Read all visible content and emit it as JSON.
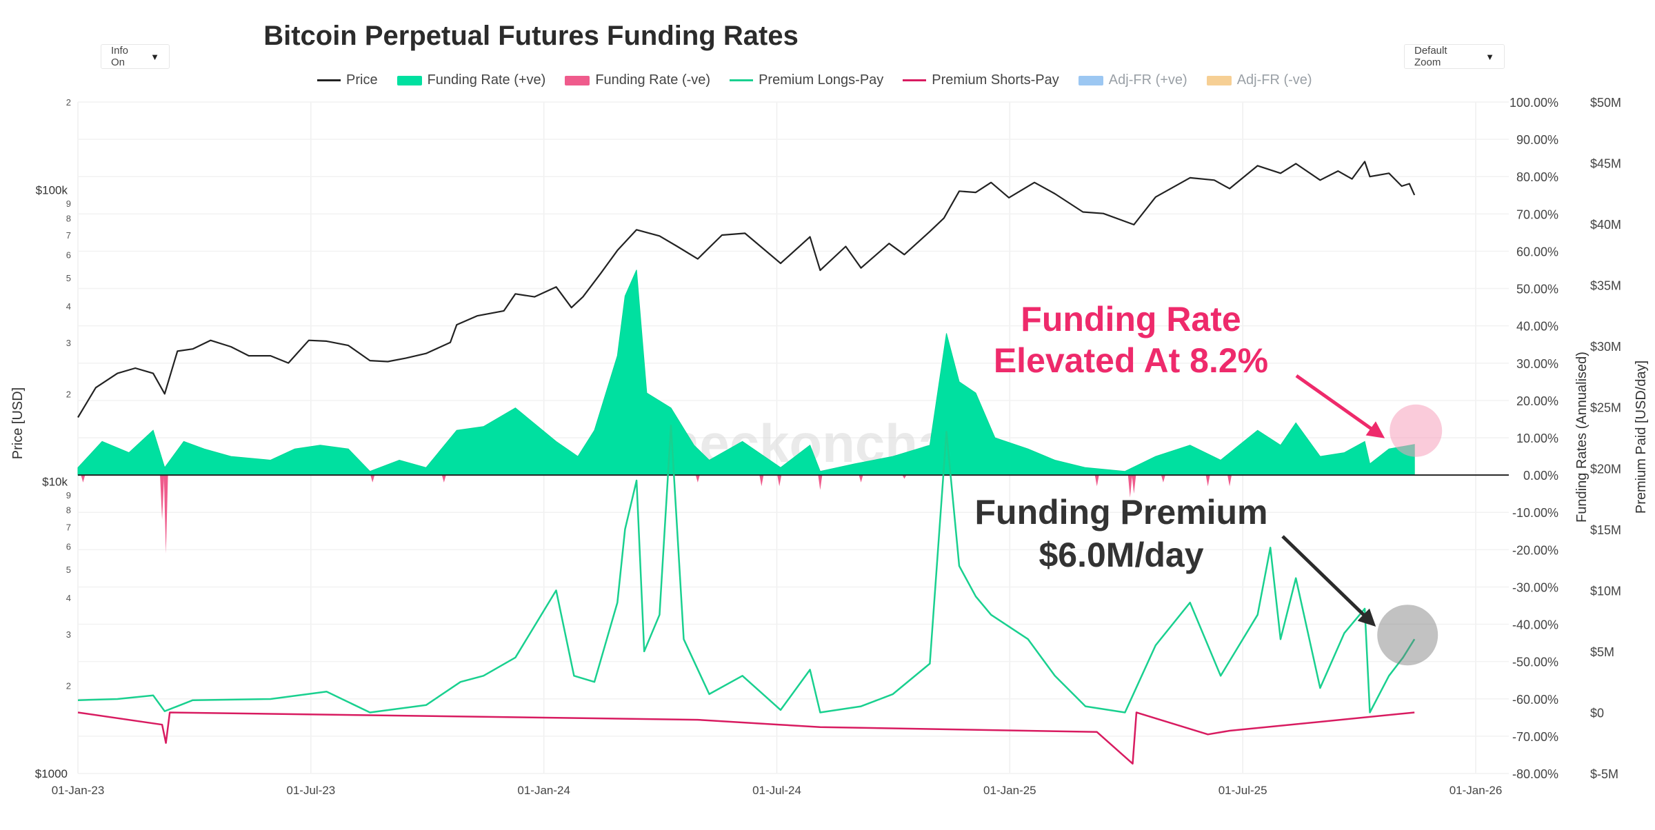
{
  "chart_data": {
    "title": "Bitcoin Perpetual Futures Funding Rates",
    "type": "line",
    "x_ticks": [
      "01-Jan-23",
      "01-Jul-23",
      "01-Jan-24",
      "01-Jul-24",
      "01-Jan-25",
      "01-Jul-25",
      "01-Jan-26"
    ],
    "x_range": [
      "2023-01-01",
      "2026-01-31"
    ],
    "left_axis": {
      "label": "Price [USD]",
      "scale": "log",
      "range": [
        1000,
        200000
      ],
      "major_ticks": [
        {
          "value": 100000,
          "label": "$100k"
        },
        {
          "value": 10000,
          "label": "$10k"
        },
        {
          "value": 1000,
          "label": "$1000"
        }
      ],
      "minor_ticks": [
        {
          "value": 200000,
          "label": "2"
        },
        {
          "value": 90000,
          "label": "9"
        },
        {
          "value": 80000,
          "label": "8"
        },
        {
          "value": 70000,
          "label": "7"
        },
        {
          "value": 60000,
          "label": "6"
        },
        {
          "value": 50000,
          "label": "5"
        },
        {
          "value": 40000,
          "label": "4"
        },
        {
          "value": 30000,
          "label": "3"
        },
        {
          "value": 20000,
          "label": "2"
        },
        {
          "value": 9000,
          "label": "9"
        },
        {
          "value": 8000,
          "label": "8"
        },
        {
          "value": 7000,
          "label": "7"
        },
        {
          "value": 6000,
          "label": "6"
        },
        {
          "value": 5000,
          "label": "5"
        },
        {
          "value": 4000,
          "label": "4"
        },
        {
          "value": 3000,
          "label": "3"
        },
        {
          "value": 2000,
          "label": "2"
        }
      ]
    },
    "right_axis_1": {
      "label": "Funding Rates (Annualised)",
      "range": [
        -80,
        100
      ],
      "ticks": [
        "100.00%",
        "90.00%",
        "80.00%",
        "70.00%",
        "60.00%",
        "50.00%",
        "40.00%",
        "30.00%",
        "20.00%",
        "10.00%",
        "0.00%",
        "-10.00%",
        "-20.00%",
        "-30.00%",
        "-40.00%",
        "-50.00%",
        "-60.00%",
        "-70.00%",
        "-80.00%"
      ]
    },
    "right_axis_2": {
      "label": "Premium Paid [USD/day]",
      "range": [
        -5,
        50
      ],
      "ticks": [
        "$50M",
        "$45M",
        "$40M",
        "$35M",
        "$30M",
        "$25M",
        "$20M",
        "$15M",
        "$10M",
        "$5M",
        "$0",
        "$-5M"
      ]
    },
    "legend": [
      {
        "name": "Price",
        "color": "#222222",
        "kind": "line"
      },
      {
        "name": "Funding Rate (+ve)",
        "color": "#00e0a0",
        "kind": "box"
      },
      {
        "name": "Funding Rate (-ve)",
        "color": "#ef5b8c",
        "kind": "box"
      },
      {
        "name": "Premium Longs-Pay",
        "color": "#19d08f",
        "kind": "line"
      },
      {
        "name": "Premium Shorts-Pay",
        "color": "#d81b60",
        "kind": "line"
      },
      {
        "name": "Adj-FR (+ve)",
        "color": "#9cc7f2",
        "kind": "box",
        "muted": true
      },
      {
        "name": "Adj-FR (-ve)",
        "color": "#f6cf94",
        "kind": "box",
        "muted": true
      }
    ],
    "series": [
      {
        "name": "Price",
        "axis": "price",
        "points": [
          [
            "2023-01-01",
            16600
          ],
          [
            "2023-01-15",
            21000
          ],
          [
            "2023-02-01",
            23500
          ],
          [
            "2023-02-15",
            24500
          ],
          [
            "2023-03-01",
            23500
          ],
          [
            "2023-03-10",
            20000
          ],
          [
            "2023-03-20",
            28000
          ],
          [
            "2023-04-01",
            28500
          ],
          [
            "2023-04-15",
            30500
          ],
          [
            "2023-05-01",
            29000
          ],
          [
            "2023-05-15",
            27000
          ],
          [
            "2023-06-01",
            27000
          ],
          [
            "2023-06-15",
            25500
          ],
          [
            "2023-07-01",
            30500
          ],
          [
            "2023-07-15",
            30300
          ],
          [
            "2023-08-01",
            29300
          ],
          [
            "2023-08-18",
            26000
          ],
          [
            "2023-09-01",
            25800
          ],
          [
            "2023-09-15",
            26500
          ],
          [
            "2023-10-01",
            27500
          ],
          [
            "2023-10-20",
            30000
          ],
          [
            "2023-10-25",
            34500
          ],
          [
            "2023-11-10",
            37000
          ],
          [
            "2023-12-01",
            38500
          ],
          [
            "2023-12-10",
            44000
          ],
          [
            "2023-12-25",
            43000
          ],
          [
            "2024-01-11",
            46500
          ],
          [
            "2024-01-23",
            39500
          ],
          [
            "2024-02-01",
            43000
          ],
          [
            "2024-02-15",
            51800
          ],
          [
            "2024-02-28",
            62000
          ],
          [
            "2024-03-14",
            73000
          ],
          [
            "2024-04-01",
            69500
          ],
          [
            "2024-04-15",
            64000
          ],
          [
            "2024-05-01",
            58000
          ],
          [
            "2024-05-20",
            70000
          ],
          [
            "2024-06-07",
            71000
          ],
          [
            "2024-07-05",
            56000
          ],
          [
            "2024-07-28",
            69000
          ],
          [
            "2024-08-05",
            53000
          ],
          [
            "2024-08-25",
            64000
          ],
          [
            "2024-09-06",
            54000
          ],
          [
            "2024-09-28",
            65500
          ],
          [
            "2024-10-10",
            60000
          ],
          [
            "2024-10-30",
            72000
          ],
          [
            "2024-11-10",
            80000
          ],
          [
            "2024-11-22",
            99000
          ],
          [
            "2024-12-05",
            98000
          ],
          [
            "2024-12-17",
            106000
          ],
          [
            "2024-12-31",
            94000
          ],
          [
            "2025-01-20",
            106000
          ],
          [
            "2025-02-05",
            97000
          ],
          [
            "2025-02-27",
            84000
          ],
          [
            "2025-03-15",
            83000
          ],
          [
            "2025-04-08",
            76000
          ],
          [
            "2025-04-25",
            94500
          ],
          [
            "2025-05-22",
            110000
          ],
          [
            "2025-06-10",
            108000
          ],
          [
            "2025-06-22",
            101000
          ],
          [
            "2025-07-14",
            121000
          ],
          [
            "2025-08-01",
            114000
          ],
          [
            "2025-08-13",
            123000
          ],
          [
            "2025-09-01",
            108000
          ],
          [
            "2025-09-15",
            116000
          ],
          [
            "2025-09-26",
            109000
          ],
          [
            "2025-10-06",
            125000
          ],
          [
            "2025-10-10",
            111000
          ],
          [
            "2025-10-25",
            114000
          ],
          [
            "2025-11-04",
            103000
          ],
          [
            "2025-11-10",
            105000
          ],
          [
            "2025-11-14",
            96000
          ]
        ]
      },
      {
        "name": "Funding Rate (+ve)",
        "axis": "funding_rate_pct",
        "points": [
          [
            "2023-01-01",
            2
          ],
          [
            "2023-01-20",
            9
          ],
          [
            "2023-02-10",
            6
          ],
          [
            "2023-03-01",
            12
          ],
          [
            "2023-03-10",
            2
          ],
          [
            "2023-03-25",
            9
          ],
          [
            "2023-04-10",
            7
          ],
          [
            "2023-05-01",
            5
          ],
          [
            "2023-06-01",
            4
          ],
          [
            "2023-06-20",
            7
          ],
          [
            "2023-07-10",
            8
          ],
          [
            "2023-08-01",
            7
          ],
          [
            "2023-08-18",
            1
          ],
          [
            "2023-09-10",
            4
          ],
          [
            "2023-10-01",
            2
          ],
          [
            "2023-10-25",
            12
          ],
          [
            "2023-11-15",
            13
          ],
          [
            "2023-12-10",
            18
          ],
          [
            "2024-01-11",
            9
          ],
          [
            "2024-01-28",
            5
          ],
          [
            "2024-02-10",
            12
          ],
          [
            "2024-02-28",
            32
          ],
          [
            "2024-03-05",
            48
          ],
          [
            "2024-03-14",
            55
          ],
          [
            "2024-03-22",
            22
          ],
          [
            "2024-04-10",
            18
          ],
          [
            "2024-04-28",
            8
          ],
          [
            "2024-05-10",
            4
          ],
          [
            "2024-06-05",
            9
          ],
          [
            "2024-07-05",
            2
          ],
          [
            "2024-07-28",
            8
          ],
          [
            "2024-08-05",
            1
          ],
          [
            "2024-09-01",
            3
          ],
          [
            "2024-10-01",
            5
          ],
          [
            "2024-10-30",
            8
          ],
          [
            "2024-11-12",
            38
          ],
          [
            "2024-11-22",
            25
          ],
          [
            "2024-12-05",
            22
          ],
          [
            "2024-12-20",
            10
          ],
          [
            "2025-01-15",
            7
          ],
          [
            "2025-02-05",
            4
          ],
          [
            "2025-03-01",
            2
          ],
          [
            "2025-04-01",
            1
          ],
          [
            "2025-04-25",
            5
          ],
          [
            "2025-05-22",
            8
          ],
          [
            "2025-06-15",
            4
          ],
          [
            "2025-07-14",
            12
          ],
          [
            "2025-08-01",
            8
          ],
          [
            "2025-08-13",
            14
          ],
          [
            "2025-09-01",
            5
          ],
          [
            "2025-09-20",
            6
          ],
          [
            "2025-10-06",
            9
          ],
          [
            "2025-10-10",
            3
          ],
          [
            "2025-10-25",
            7
          ],
          [
            "2025-11-14",
            8.2
          ]
        ]
      },
      {
        "name": "Funding Rate (-ve)",
        "axis": "funding_rate_pct",
        "points": [
          [
            "2023-01-05",
            -2
          ],
          [
            "2023-03-08",
            -12
          ],
          [
            "2023-03-11",
            -21
          ],
          [
            "2023-08-20",
            -2
          ],
          [
            "2023-10-15",
            -2
          ],
          [
            "2024-05-01",
            -2
          ],
          [
            "2024-06-20",
            -3
          ],
          [
            "2024-07-04",
            -3
          ],
          [
            "2024-08-05",
            -4
          ],
          [
            "2024-09-06",
            -2
          ],
          [
            "2024-10-10",
            -1
          ],
          [
            "2025-03-10",
            -3
          ],
          [
            "2025-04-05",
            -6
          ],
          [
            "2025-04-08",
            -5
          ],
          [
            "2025-05-01",
            -2
          ],
          [
            "2025-06-05",
            -3
          ],
          [
            "2025-06-22",
            -3
          ]
        ]
      },
      {
        "name": "Premium Longs-Pay",
        "axis": "premium_usd_m",
        "points": [
          [
            "2023-01-01",
            1.0
          ],
          [
            "2023-02-01",
            1.1
          ],
          [
            "2023-03-01",
            1.4
          ],
          [
            "2023-03-10",
            0.1
          ],
          [
            "2023-04-01",
            1.0
          ],
          [
            "2023-06-01",
            1.1
          ],
          [
            "2023-07-15",
            1.7
          ],
          [
            "2023-08-18",
            0.0
          ],
          [
            "2023-10-01",
            0.6
          ],
          [
            "2023-10-28",
            2.5
          ],
          [
            "2023-11-15",
            3.0
          ],
          [
            "2023-12-10",
            4.5
          ],
          [
            "2024-01-11",
            10.0
          ],
          [
            "2024-01-25",
            3.0
          ],
          [
            "2024-02-10",
            2.5
          ],
          [
            "2024-02-28",
            9.0
          ],
          [
            "2024-03-05",
            15.0
          ],
          [
            "2024-03-14",
            19.0
          ],
          [
            "2024-03-20",
            5.0
          ],
          [
            "2024-04-01",
            8.0
          ],
          [
            "2024-04-10",
            23.5
          ],
          [
            "2024-04-20",
            6.0
          ],
          [
            "2024-05-10",
            1.5
          ],
          [
            "2024-06-05",
            3.0
          ],
          [
            "2024-07-05",
            0.2
          ],
          [
            "2024-07-28",
            3.5
          ],
          [
            "2024-08-05",
            0.0
          ],
          [
            "2024-09-06",
            0.5
          ],
          [
            "2024-10-01",
            1.5
          ],
          [
            "2024-10-30",
            4.0
          ],
          [
            "2024-11-12",
            23.0
          ],
          [
            "2024-11-22",
            12.0
          ],
          [
            "2024-12-05",
            9.5
          ],
          [
            "2024-12-17",
            8.0
          ],
          [
            "2025-01-15",
            6.0
          ],
          [
            "2025-02-05",
            3.0
          ],
          [
            "2025-03-01",
            0.5
          ],
          [
            "2025-04-01",
            0.0
          ],
          [
            "2025-04-25",
            5.5
          ],
          [
            "2025-05-22",
            9.0
          ],
          [
            "2025-06-15",
            3.0
          ],
          [
            "2025-07-14",
            8.0
          ],
          [
            "2025-07-24",
            13.5
          ],
          [
            "2025-08-01",
            6.0
          ],
          [
            "2025-08-13",
            11.0
          ],
          [
            "2025-09-01",
            2.0
          ],
          [
            "2025-09-20",
            6.5
          ],
          [
            "2025-10-06",
            8.5
          ],
          [
            "2025-10-10",
            0.0
          ],
          [
            "2025-10-25",
            3.0
          ],
          [
            "2025-11-05",
            4.5
          ],
          [
            "2025-11-14",
            6.0
          ]
        ]
      },
      {
        "name": "Premium Shorts-Pay",
        "axis": "premium_usd_m",
        "points": [
          [
            "2023-01-01",
            0.0
          ],
          [
            "2023-03-08",
            -1.0
          ],
          [
            "2023-03-11",
            -2.5
          ],
          [
            "2023-03-14",
            0.0
          ],
          [
            "2024-05-01",
            -0.6
          ],
          [
            "2024-07-04",
            -1.0
          ],
          [
            "2024-08-05",
            -1.2
          ],
          [
            "2025-03-10",
            -1.6
          ],
          [
            "2025-04-07",
            -4.2
          ],
          [
            "2025-04-10",
            0.0
          ],
          [
            "2025-06-05",
            -1.8
          ],
          [
            "2025-06-22",
            -1.5
          ],
          [
            "2025-11-14",
            0.0
          ]
        ]
      }
    ],
    "annotations": [
      {
        "text": [
          "Funding Rate",
          "Elevated At 8.2%"
        ],
        "color": "#ee2a6b"
      },
      {
        "text": [
          "Funding Premium",
          "$6.0M/day"
        ],
        "color": "#333333"
      }
    ],
    "watermark": "_checkonchain"
  },
  "controls": {
    "info_label": "Info On",
    "zoom_label": "Default Zoom"
  }
}
